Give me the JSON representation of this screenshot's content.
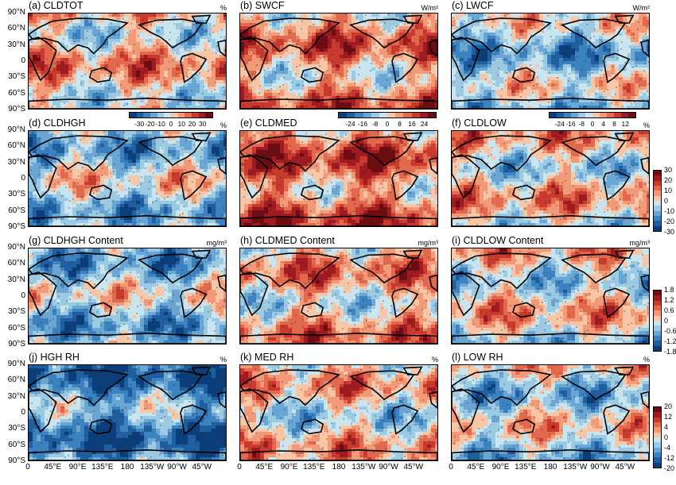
{
  "palette": [
    "#0c3f7a",
    "#1f5fa0",
    "#3c82bf",
    "#6aa6d4",
    "#9ccae2",
    "#c9e5ef",
    "#f7c6a7",
    "#f29a77",
    "#e2694e",
    "#c93a2e",
    "#9e1b22",
    "#6b0d13"
  ],
  "lat_labels": [
    "90°N",
    "60°N",
    "30°N",
    "0",
    "30°S",
    "60°S",
    "90°S"
  ],
  "lon_labels": [
    "0",
    "45°E",
    "90°E",
    "135°E",
    "180",
    "135°W",
    "90°W",
    "45°W"
  ],
  "panels": [
    {
      "title": "(a)  CLDTOT",
      "unit": "%",
      "bias": 0.15
    },
    {
      "title": "(b)  SWCF",
      "unit": "W/m²",
      "bias": 0.35
    },
    {
      "title": "(c)  LWCF",
      "unit": "W/m²",
      "bias": -0.3
    },
    {
      "title": "(d)  CLDHGH",
      "unit": "%",
      "bias": -0.25
    },
    {
      "title": "(e)  CLDMED",
      "unit": "",
      "bias": 0.5
    },
    {
      "title": "(f)  CLDLOW",
      "unit": "%",
      "bias": 0.05
    },
    {
      "title": "(g)  CLDHGH Content",
      "unit": "mg/m³",
      "bias": -0.3
    },
    {
      "title": "(h)  CLDMED Content",
      "unit": "mg/m³",
      "bias": 0.2
    },
    {
      "title": "(i)  CLDLOW Content",
      "unit": "mg/m³",
      "bias": 0.0
    },
    {
      "title": "(j)  HGH RH",
      "unit": "%",
      "bias": -0.7
    },
    {
      "title": "(k)  MED RH",
      "unit": "%",
      "bias": 0.05
    },
    {
      "title": "(l)  LOW RH",
      "unit": "%",
      "bias": -0.15
    }
  ],
  "colorbars": {
    "a": [
      "-30",
      "-20",
      "-10",
      "0",
      "10",
      "20",
      "30"
    ],
    "b": [
      "-24",
      "-16",
      "-8",
      "0",
      "8",
      "16",
      "24"
    ],
    "c": [
      "-24",
      "-16",
      "-8",
      "0",
      "4",
      "8",
      "12"
    ],
    "row2": [
      "30",
      "20",
      "10",
      "0",
      "-10",
      "-20",
      "-30"
    ],
    "row3": [
      "1.8",
      "1.2",
      "0.6",
      "0",
      "-0.6",
      "-1.2",
      "-1.8"
    ],
    "row4": [
      "20",
      "12",
      "4",
      "0",
      "-4",
      "-12",
      "-20"
    ]
  }
}
